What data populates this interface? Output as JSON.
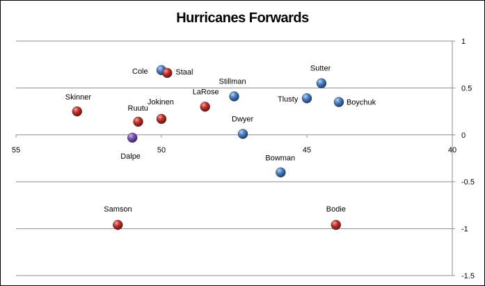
{
  "chart_data": {
    "type": "scatter",
    "title": "Hurricanes Forwards",
    "xlabel": "",
    "ylabel": "",
    "xlim": [
      55,
      40
    ],
    "ylim": [
      -1.5,
      1
    ],
    "x_reversed": true,
    "x_ticks": [
      "55",
      "50",
      "45",
      "40"
    ],
    "y_ticks": [
      "1",
      "0.5",
      "0",
      "-0.5",
      "-1",
      "-1.5"
    ],
    "grid": "horizontal",
    "colors": {
      "red": "#c0302c",
      "blue": "#4a7fc0",
      "purple": "#7a52b0"
    },
    "points": [
      {
        "name": "Skinner",
        "x": 52.9,
        "y": 0.25,
        "color": "red"
      },
      {
        "name": "Cole",
        "x": 50.0,
        "y": 0.69,
        "color": "blue"
      },
      {
        "name": "Staal",
        "x": 49.8,
        "y": 0.66,
        "color": "red"
      },
      {
        "name": "Ruutu",
        "x": 50.8,
        "y": 0.14,
        "color": "red"
      },
      {
        "name": "Jokinen",
        "x": 50.0,
        "y": 0.17,
        "color": "red"
      },
      {
        "name": "Dalpe",
        "x": 51.0,
        "y": -0.03,
        "color": "purple"
      },
      {
        "name": "LaRose",
        "x": 48.5,
        "y": 0.3,
        "color": "red"
      },
      {
        "name": "Stillman",
        "x": 47.5,
        "y": 0.41,
        "color": "blue"
      },
      {
        "name": "Dwyer",
        "x": 47.2,
        "y": 0.01,
        "color": "blue"
      },
      {
        "name": "Bowman",
        "x": 45.9,
        "y": -0.4,
        "color": "blue"
      },
      {
        "name": "Tlusty",
        "x": 45.0,
        "y": 0.39,
        "color": "blue"
      },
      {
        "name": "Sutter",
        "x": 44.5,
        "y": 0.55,
        "color": "blue"
      },
      {
        "name": "Boychuk",
        "x": 43.9,
        "y": 0.35,
        "color": "blue"
      },
      {
        "name": "Samson",
        "x": 51.5,
        "y": -0.96,
        "color": "red"
      },
      {
        "name": "Bodie",
        "x": 44.0,
        "y": -0.96,
        "color": "red"
      }
    ]
  }
}
